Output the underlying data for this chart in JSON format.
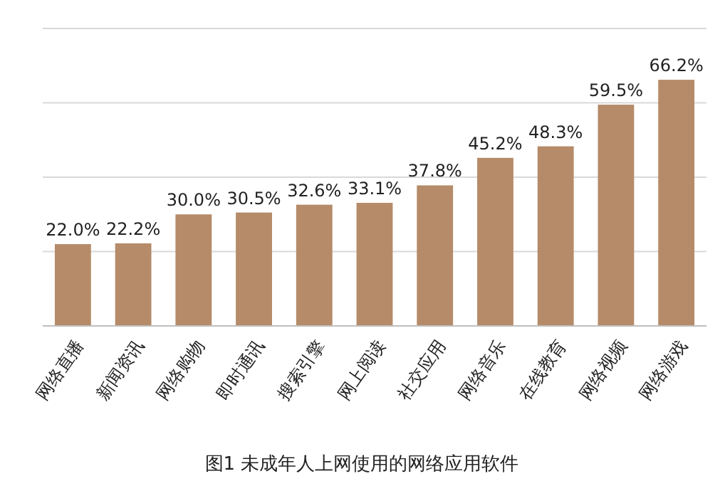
{
  "chart_data": {
    "type": "bar",
    "title": "图1  未成年人上网使用的网络应用软件",
    "categories": [
      "网络直播",
      "新闻资讯",
      "网络购物",
      "即时通讯",
      "搜索引擎",
      "网上阅读",
      "社交应用",
      "网络音乐",
      "在线教育",
      "网络视频",
      "网络游戏"
    ],
    "values": [
      22.0,
      22.2,
      30.0,
      30.5,
      32.6,
      33.1,
      37.8,
      45.2,
      48.3,
      59.5,
      66.2
    ],
    "value_labels": [
      "22.0%",
      "22.2%",
      "30.0%",
      "30.5%",
      "32.6%",
      "33.1%",
      "37.8%",
      "45.2%",
      "48.3%",
      "59.5%",
      "66.2%"
    ],
    "color": "#b58b69",
    "ylim": [
      0,
      80
    ],
    "yticks": [
      {
        "value": 0,
        "label": null
      },
      {
        "value": 20,
        "label": null
      },
      {
        "value": 40,
        "label": null
      },
      {
        "value": 60,
        "label": null
      },
      {
        "value": 80,
        "label": null
      }
    ],
    "tick_labels": "x",
    "grid": "y"
  }
}
